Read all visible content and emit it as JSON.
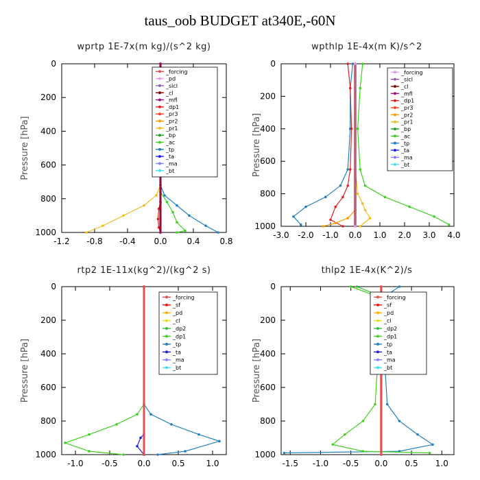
{
  "title": "taus_oob  BUDGET at340E,-60N",
  "colors": {
    "forcing": "#e05050",
    "pd": "#e0a0e0",
    "sicl": "#9060b0",
    "cl": "#800000",
    "mfl": "#a01080",
    "dp1": "#e02020",
    "pr3": "#ff4020",
    "pr2": "#ff9900",
    "pr1": "#f0c020",
    "bp": "#20a020",
    "ac": "#40d020",
    "tp": "#2080c0",
    "ta": "#2020e0",
    "ma": "#8080ff",
    "bt": "#40e0f0",
    "sf": "#ff1010",
    "dp2": "#30c030",
    "pd_yellow": "#ffb000",
    "cl_yellow": "#e0e020"
  },
  "chart_data": [
    {
      "type": "line",
      "title": "wprtp   1E-7x(m kg)/(s^2 kg)",
      "ylabel": "Pressure [hPa]",
      "xlabel": "",
      "xlim": [
        -1.2,
        0.8
      ],
      "ylim": [
        1000,
        0
      ],
      "xticks": [
        "-1.2",
        "-0.8",
        "-0.4",
        "0.0",
        "0.4",
        "0.8"
      ],
      "xtick_values": [
        -1.2,
        -0.8,
        -0.4,
        0.0,
        0.4,
        0.8
      ],
      "yticks": [
        "0",
        "200",
        "400",
        "600",
        "800",
        "1000"
      ],
      "ytick_values": [
        0,
        200,
        400,
        600,
        800,
        1000
      ],
      "legend": [
        "_forcing",
        "_pd",
        "_sicl",
        "_cl",
        "_mfl",
        "_dp1",
        "_pr3",
        "_pr2",
        "_pr1",
        "_bp",
        "_ac",
        "_tp",
        "_ta",
        "_ma",
        "_bt"
      ],
      "legend_keys": [
        "forcing",
        "pd",
        "sicl",
        "cl",
        "mfl",
        "dp1",
        "pr3",
        "pr2",
        "pr1",
        "bp",
        "ac",
        "tp",
        "ta",
        "ma",
        "bt"
      ],
      "legend_position": "top-right",
      "series": [
        {
          "key": "pr1",
          "x": [
            0.0,
            0.0,
            -0.05,
            -0.2,
            -0.45,
            -0.7,
            -0.9
          ],
          "y": [
            0,
            720,
            780,
            840,
            900,
            960,
            1000
          ]
        },
        {
          "key": "tp",
          "x": [
            0.0,
            0.0,
            0.05,
            0.2,
            0.35,
            0.55,
            0.7
          ],
          "y": [
            0,
            720,
            780,
            840,
            900,
            960,
            1000
          ]
        },
        {
          "key": "ac",
          "x": [
            0.0,
            0.0,
            0.08,
            0.15,
            0.2,
            0.3,
            0.2
          ],
          "y": [
            0,
            760,
            820,
            880,
            940,
            990,
            1000
          ]
        },
        {
          "key": "dp1",
          "x": [
            0.0,
            0.0,
            -0.02,
            -0.03,
            -0.02,
            0.0
          ],
          "y": [
            0,
            820,
            860,
            920,
            970,
            1000
          ]
        },
        {
          "key": "forcing",
          "x": [
            0.0,
            0.0
          ],
          "y": [
            0,
            1000
          ]
        },
        {
          "key": "cl",
          "x": [
            0.0,
            0.0
          ],
          "y": [
            0,
            1000
          ]
        },
        {
          "key": "mfl",
          "x": [
            0.0,
            0.0
          ],
          "y": [
            0,
            1000
          ]
        }
      ]
    },
    {
      "type": "line",
      "title": "wpthlp   1E-4x(m K)/s^2",
      "ylabel": "Pressure [hPa]",
      "xlabel": "",
      "xlim": [
        -3.0,
        4.0
      ],
      "ylim": [
        1000,
        0
      ],
      "xticks": [
        "-3.0",
        "-2.0",
        "-1.0",
        "0.0",
        "1.0",
        "2.0",
        "3.0",
        "4.0"
      ],
      "xtick_values": [
        -3.0,
        -2.0,
        -1.0,
        0.0,
        1.0,
        2.0,
        3.0,
        4.0
      ],
      "yticks": [
        "0",
        "200",
        "400",
        "600",
        "800",
        "1000"
      ],
      "ytick_values": [
        0,
        200,
        400,
        600,
        800,
        1000
      ],
      "legend": [
        "_forcing",
        "_sicl",
        "_cl",
        "_mfl",
        "_dp1",
        "_pr3",
        "_pr2",
        "_pr1",
        "_bp",
        "_ac",
        "_tp",
        "_ta",
        "_ma",
        "_bt"
      ],
      "legend_keys": [
        "pd",
        "sicl",
        "cl",
        "mfl",
        "dp1",
        "pr3",
        "pr2",
        "pr1",
        "bp",
        "ac",
        "tp",
        "ta",
        "ma",
        "bt"
      ],
      "legend_position": "top-right",
      "series": [
        {
          "key": "ac",
          "x": [
            0.3,
            0.2,
            0.1,
            0.2,
            0.4,
            1.2,
            2.2,
            3.2,
            3.8
          ],
          "y": [
            0,
            150,
            400,
            650,
            750,
            820,
            880,
            940,
            990
          ]
        },
        {
          "key": "tp",
          "x": [
            -0.1,
            -0.2,
            -0.2,
            -0.3,
            -0.6,
            -1.2,
            -2.0,
            -2.5,
            -2.2
          ],
          "y": [
            0,
            150,
            400,
            650,
            750,
            820,
            880,
            940,
            990
          ]
        },
        {
          "key": "dp1",
          "x": [
            -0.3,
            -0.2,
            -0.15,
            -0.2,
            -0.3,
            -0.5,
            -0.8,
            -1.0,
            -0.5
          ],
          "y": [
            0,
            150,
            400,
            650,
            750,
            820,
            880,
            960,
            1000
          ]
        },
        {
          "key": "pr1",
          "x": [
            0.0,
            0.0,
            0.1,
            0.3,
            0.4,
            0.6,
            0.2
          ],
          "y": [
            0,
            650,
            800,
            860,
            900,
            950,
            1000
          ]
        },
        {
          "key": "pr2",
          "x": [
            0.0,
            0.0,
            -0.3,
            -0.8,
            -1.3
          ],
          "y": [
            0,
            900,
            950,
            980,
            1000
          ]
        },
        {
          "key": "cl",
          "x": [
            0.0,
            0.0
          ],
          "y": [
            0,
            1000
          ]
        },
        {
          "key": "pd",
          "x": [
            0.0,
            0.0
          ],
          "y": [
            0,
            1000
          ]
        }
      ]
    },
    {
      "type": "line",
      "title": "rtp2   1E-11x(kg^2)/(kg^2 s)",
      "ylabel": "Pressure [hPa]",
      "xlabel": "",
      "xlim": [
        -1.2,
        1.2
      ],
      "ylim": [
        1000,
        0
      ],
      "xticks": [
        "-1.0",
        "-0.5",
        "0.0",
        "0.5",
        "1.0"
      ],
      "xtick_values": [
        -1.0,
        -0.5,
        0.0,
        0.5,
        1.0
      ],
      "yticks": [
        "0",
        "200",
        "400",
        "600",
        "800",
        "1000"
      ],
      "ytick_values": [
        0,
        200,
        400,
        600,
        800,
        1000
      ],
      "legend": [
        "_forcing",
        "_sf",
        "_pd",
        "_cl",
        "_dp2",
        "_dp1",
        "_tp",
        "_ta",
        "_ma",
        "_bt"
      ],
      "legend_keys": [
        "forcing",
        "sf",
        "pd_yellow",
        "cl_yellow",
        "dp2",
        "ac",
        "tp",
        "ta",
        "ma",
        "bt"
      ],
      "legend_position": "top-right",
      "series": [
        {
          "key": "tp",
          "x": [
            0.0,
            0.0,
            0.1,
            0.4,
            0.8,
            1.1,
            0.6,
            0.2
          ],
          "y": [
            0,
            700,
            760,
            820,
            880,
            920,
            980,
            1000
          ]
        },
        {
          "key": "ac",
          "x": [
            0.0,
            0.0,
            -0.1,
            -0.4,
            -0.8,
            -1.15,
            -0.8,
            -0.3
          ],
          "y": [
            0,
            700,
            760,
            820,
            880,
            930,
            980,
            1000
          ]
        },
        {
          "key": "ta",
          "x": [
            0.0,
            0.0,
            -0.05,
            -0.1,
            0.0
          ],
          "y": [
            0,
            880,
            900,
            950,
            1000
          ]
        },
        {
          "key": "sf",
          "x": [
            0.0,
            0.0
          ],
          "y": [
            0,
            1000
          ]
        },
        {
          "key": "forcing",
          "x": [
            0.0,
            0.0
          ],
          "y": [
            0,
            1000
          ]
        }
      ]
    },
    {
      "type": "line",
      "title": "thlp2   1E-4x(K^2)/s",
      "ylabel": "Pressure [hPa]",
      "xlabel": "",
      "xlim": [
        -1.65,
        1.2
      ],
      "ylim": [
        1000,
        0
      ],
      "xticks": [
        "-1.5",
        "-1.0",
        "-0.5",
        "0.0",
        "0.5",
        "1.0"
      ],
      "xtick_values": [
        -1.5,
        -1.0,
        -0.5,
        0.0,
        0.5,
        1.0
      ],
      "yticks": [
        "0",
        "200",
        "400",
        "600",
        "800",
        "1000"
      ],
      "ytick_values": [
        0,
        200,
        400,
        600,
        800,
        1000
      ],
      "legend": [
        "_forcing",
        "_sf",
        "_pd",
        "_cl",
        "_dp2",
        "_dp1",
        "_tp",
        "_ta",
        "_ma",
        "_bt"
      ],
      "legend_keys": [
        "forcing",
        "sf",
        "pd_yellow",
        "cl_yellow",
        "dp2",
        "ac",
        "tp",
        "ta",
        "ma",
        "bt"
      ],
      "legend_position": "top-right",
      "series": [
        {
          "key": "tp",
          "x": [
            0.3,
            0.05,
            0.05,
            0.1,
            0.3,
            0.6,
            0.85,
            0.3,
            -1.6
          ],
          "y": [
            0,
            60,
            400,
            700,
            800,
            880,
            940,
            980,
            990
          ]
        },
        {
          "key": "ac",
          "x": [
            -0.5,
            -0.05,
            -0.05,
            -0.1,
            -0.3,
            -0.6,
            -0.8,
            -0.3,
            0.8
          ],
          "y": [
            0,
            60,
            400,
            700,
            800,
            880,
            940,
            980,
            990
          ]
        },
        {
          "key": "dp2",
          "x": [
            -0.4,
            -0.05,
            0.0
          ],
          "y": [
            0,
            50,
            150
          ]
        },
        {
          "key": "sf",
          "x": [
            0.0,
            0.0
          ],
          "y": [
            0,
            1000
          ]
        },
        {
          "key": "forcing",
          "x": [
            0.0,
            0.0
          ],
          "y": [
            0,
            1000
          ]
        }
      ]
    }
  ]
}
